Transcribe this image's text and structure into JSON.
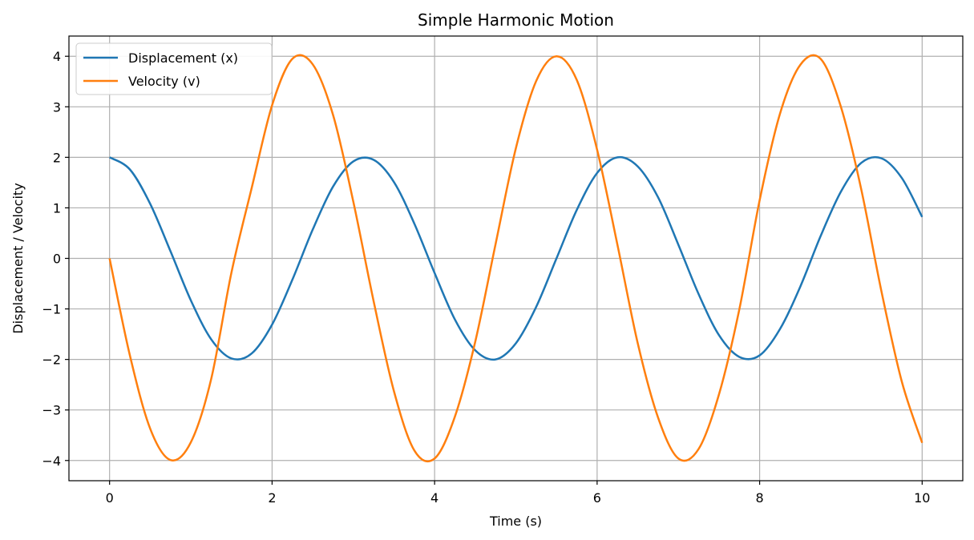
{
  "chart_data": {
    "type": "line",
    "title": "Simple Harmonic Motion",
    "xlabel": "Time (s)",
    "ylabel": "Displacement / Velocity",
    "xlim": [
      -0.5,
      10.5
    ],
    "ylim": [
      -4.4,
      4.4
    ],
    "x_ticks": [
      0,
      2,
      4,
      6,
      8,
      10
    ],
    "x_tick_labels": [
      "0",
      "2",
      "4",
      "6",
      "8",
      "10"
    ],
    "y_ticks": [
      -4,
      -3,
      -2,
      -1,
      0,
      1,
      2,
      3,
      4
    ],
    "y_tick_labels": [
      "−4",
      "−3",
      "−2",
      "−1",
      "0",
      "1",
      "2",
      "3",
      "4"
    ],
    "grid": true,
    "legend_position": "top-left",
    "series": [
      {
        "name": "Displacement (x)",
        "color": "#1f77b4",
        "x": [
          0,
          0.25,
          0.5,
          0.75,
          1,
          1.25,
          1.5,
          1.75,
          2,
          2.25,
          2.5,
          2.75,
          3,
          3.25,
          3.5,
          3.75,
          4,
          4.25,
          4.5,
          4.75,
          5,
          5.25,
          5.5,
          5.75,
          6,
          6.25,
          6.5,
          6.75,
          7,
          7.25,
          7.5,
          7.75,
          8,
          8.25,
          8.5,
          8.75,
          9,
          9.25,
          9.5,
          9.75,
          10
        ],
        "y": [
          2.0,
          1.76,
          1.08,
          0.14,
          -0.83,
          -1.6,
          -1.98,
          -1.88,
          -1.31,
          -0.42,
          0.57,
          1.42,
          1.92,
          1.95,
          1.51,
          0.69,
          -0.29,
          -1.21,
          -1.82,
          -2.0,
          -1.68,
          -0.96,
          0.0,
          0.96,
          1.69,
          2.0,
          1.82,
          1.21,
          0.27,
          -0.71,
          -1.52,
          -1.95,
          -1.92,
          -1.4,
          -0.56,
          0.44,
          1.32,
          1.89,
          1.98,
          1.59,
          0.82
        ]
      },
      {
        "name": "Velocity (v)",
        "color": "#ff7f0e",
        "x": [
          0,
          0.25,
          0.5,
          0.75,
          1,
          1.25,
          1.5,
          1.75,
          2,
          2.25,
          2.5,
          2.75,
          3,
          3.25,
          3.5,
          3.75,
          4,
          4.25,
          4.5,
          4.75,
          5,
          5.25,
          5.5,
          5.75,
          6,
          6.25,
          6.5,
          6.75,
          7,
          7.25,
          7.5,
          7.75,
          8,
          8.25,
          8.5,
          8.75,
          9,
          9.25,
          9.5,
          9.75,
          10
        ],
        "y": [
          0.0,
          -1.92,
          -3.37,
          -3.99,
          -3.64,
          -2.39,
          -0.28,
          1.4,
          3.03,
          3.95,
          3.84,
          2.84,
          1.12,
          -0.85,
          -2.63,
          -3.8,
          -3.96,
          -3.13,
          -1.65,
          0.28,
          2.18,
          3.51,
          4.0,
          3.53,
          2.15,
          0.27,
          -1.68,
          -3.15,
          -3.96,
          -3.77,
          -2.69,
          -1.01,
          1.15,
          2.86,
          3.83,
          3.95,
          3.0,
          1.37,
          -0.66,
          -2.44,
          -3.65
        ]
      }
    ]
  }
}
